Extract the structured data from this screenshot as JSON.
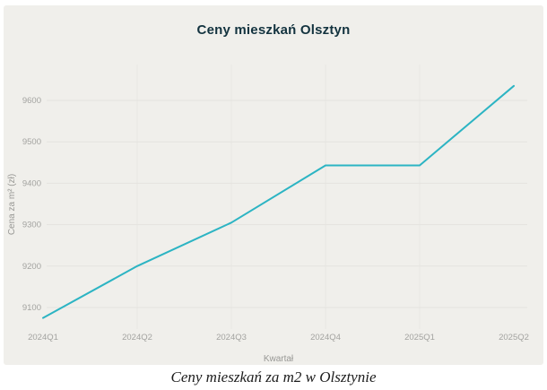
{
  "chart_data": {
    "type": "line",
    "title": "Ceny mieszkań Olsztyn",
    "xlabel": "Kwartał",
    "ylabel": "Cena za m² (zł)",
    "categories": [
      "2024Q1",
      "2024Q2",
      "2024Q3",
      "2024Q4",
      "2025Q1",
      "2025Q2"
    ],
    "series": [
      {
        "name": "Cena za m2",
        "values": [
          9075,
          9200,
          9305,
          9443,
          9443,
          9635
        ]
      }
    ],
    "yticks": [
      9100,
      9200,
      9300,
      9400,
      9500,
      9600
    ],
    "ylim": [
      9050,
      9690
    ],
    "grid": true,
    "legend_position": "none",
    "line_color": "#2cb4c3"
  },
  "caption": {
    "text": "Ceny mieszkań za m2 w Olsztynie"
  },
  "colors": {
    "page_background": "#ffffff",
    "card_background": "#f0efeb",
    "gridline": "#e4e3df",
    "vertical_gridline": "#e8e7e3",
    "tick_label": "#a3a3a0",
    "axis_title": "#979794",
    "chart_title": "#13333f",
    "caption_text": "#1c1c1c"
  }
}
